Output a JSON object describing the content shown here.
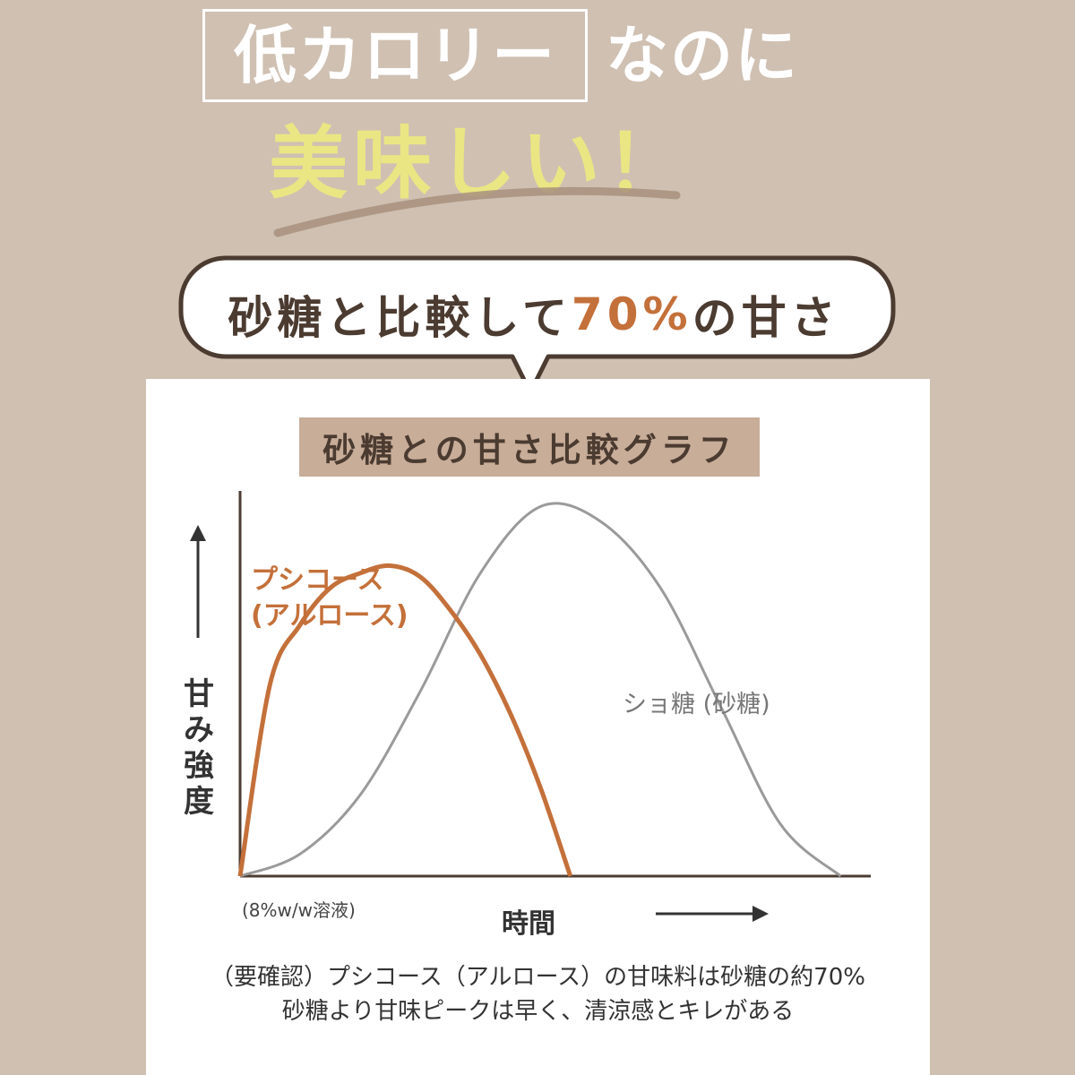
{
  "headline": {
    "boxed": "低カロリー",
    "rest": "なのに",
    "tasty": "美味しい！"
  },
  "bubble": {
    "prefix": "砂糖と比較して",
    "highlight": "70%",
    "suffix": "の甘さ"
  },
  "colors": {
    "background": "#cfc0b2",
    "accent": "#c4703a",
    "yellow_text": "#eae684",
    "title_bar": "#c8ad99",
    "sucrose_line": "#9a9a9a"
  },
  "chart_data": {
    "type": "line",
    "title": "砂糖との甘さ比較グラフ",
    "ylabel": "甘み強度",
    "xlabel": "時間",
    "annotation": "(8%w/w溶液)",
    "series": [
      {
        "name": "プシコース (アルロース)",
        "name_lines": [
          "プシコース",
          "(アルロース)"
        ],
        "color": "#c4703a",
        "x": [
          0,
          5,
          10,
          15,
          20,
          25,
          30,
          35,
          40,
          45,
          50,
          55
        ],
        "values": [
          0,
          52,
          68,
          78,
          82,
          84,
          81,
          72,
          60,
          44,
          24,
          0
        ]
      },
      {
        "name": "ショ糖 (砂糖)",
        "color": "#9a9a9a",
        "x": [
          0,
          10,
          20,
          30,
          40,
          50,
          60,
          70,
          80,
          90,
          100
        ],
        "values": [
          0,
          6,
          22,
          50,
          82,
          100,
          96,
          78,
          46,
          14,
          0
        ]
      }
    ],
    "xlim": [
      0,
      142
    ],
    "ylim": [
      0,
      120
    ],
    "grid": false
  },
  "note": {
    "line1": "（要確認）プシコース（アルロース）の甘味料は砂糖の約70%",
    "line2": "砂糖より甘味ピークは早く、清涼感とキレがある"
  }
}
